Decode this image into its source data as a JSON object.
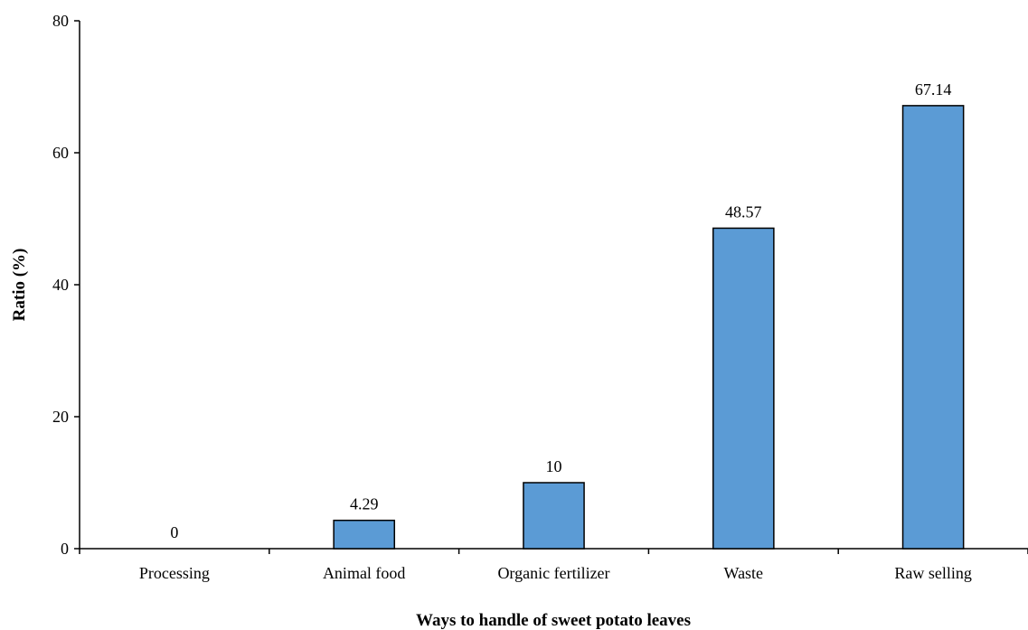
{
  "chart_data": {
    "type": "bar",
    "title": "",
    "xlabel": "Ways to handle of sweet potato leaves",
    "ylabel": "Ratio (%)",
    "categories": [
      "Processing",
      "Animal food",
      "Organic fertilizer",
      "Waste",
      "Raw selling"
    ],
    "values": [
      0,
      4.29,
      10,
      48.57,
      67.14
    ],
    "data_labels": [
      "0",
      "4.29",
      "10",
      "48.57",
      "67.14"
    ],
    "ylim": [
      0,
      80
    ],
    "yticks": [
      0,
      20,
      40,
      60,
      80
    ],
    "bar_color": "#5b9bd5",
    "bar_edge_color": "#000000",
    "grid": false,
    "legend": "none"
  }
}
